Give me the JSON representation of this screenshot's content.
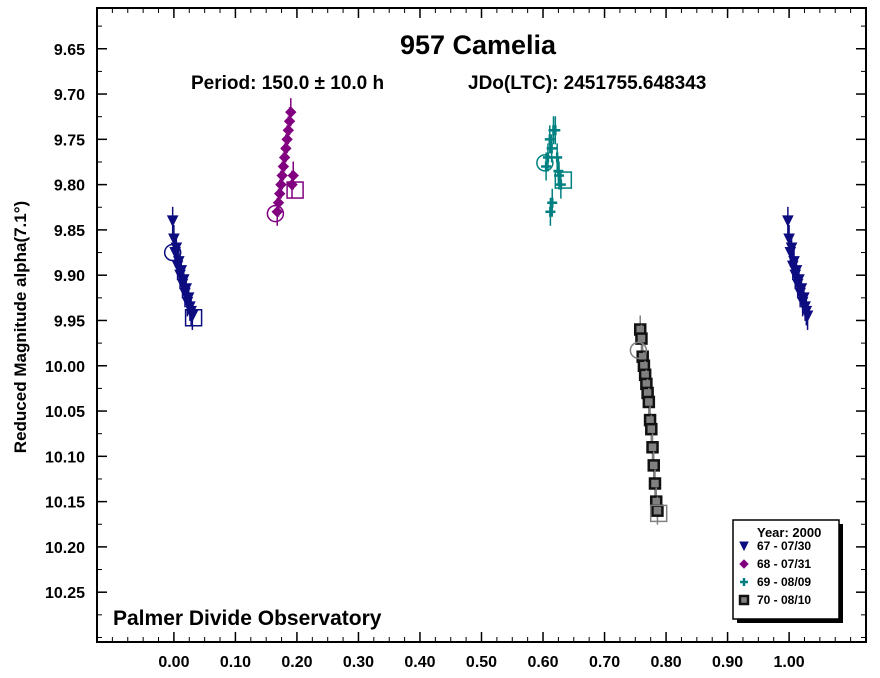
{
  "chart_data": {
    "type": "scatter",
    "title": "957 Camelia",
    "subtitle_left": "Period: 150.0 ± 10.0 h",
    "subtitle_right": "JDo(LTC): 2451755.648343",
    "ylabel": "Reduced Magnitude alpha(7.1°)",
    "xlabel": "",
    "credit": "Palmer Divide Observatory",
    "xlim": [
      -0.125,
      1.125
    ],
    "ylim": [
      9.605,
      10.305
    ],
    "y_inverted": true,
    "grid": false,
    "x_ticks": [
      "0.00",
      "0.10",
      "0.20",
      "0.30",
      "0.40",
      "0.50",
      "0.60",
      "0.70",
      "0.80",
      "0.90",
      "1.00"
    ],
    "y_ticks": [
      "9.65",
      "9.70",
      "9.75",
      "9.80",
      "9.85",
      "9.90",
      "9.95",
      "10.00",
      "10.05",
      "10.10",
      "10.15",
      "10.20",
      "10.25"
    ],
    "legend": {
      "title": "Year: 2000",
      "placement": "bottom-right",
      "entries": [
        "67 - 07/30",
        "68 - 07/31",
        "69 - 08/09",
        "70 - 08/10"
      ]
    },
    "series": [
      {
        "name": "67 - 07/30",
        "marker": "triangle-down",
        "color": "#0d0d80",
        "first_point": [
          -0.002,
          9.875
        ],
        "last_point": [
          0.032,
          9.947
        ],
        "x": [
          -0.002,
          0.0,
          0.002,
          0.004,
          0.006,
          0.008,
          0.01,
          0.012,
          0.014,
          0.016,
          0.018,
          0.02,
          0.022,
          0.024,
          0.026,
          0.028,
          0.03
        ],
        "y": [
          9.84,
          9.86,
          9.875,
          9.87,
          9.89,
          9.885,
          9.9,
          9.895,
          9.91,
          9.905,
          9.92,
          9.915,
          9.93,
          9.925,
          9.935,
          9.94,
          9.945
        ]
      },
      {
        "name": "68 - 07/31",
        "marker": "diamond",
        "color": "#800080",
        "first_point": [
          0.165,
          9.832
        ],
        "last_point": [
          0.197,
          9.806
        ],
        "x": [
          0.168,
          0.17,
          0.172,
          0.174,
          0.176,
          0.178,
          0.18,
          0.182,
          0.184,
          0.186,
          0.188,
          0.19,
          0.192,
          0.194
        ],
        "y": [
          9.83,
          9.82,
          9.81,
          9.8,
          9.79,
          9.78,
          9.77,
          9.76,
          9.75,
          9.74,
          9.73,
          9.72,
          9.8,
          9.79
        ]
      },
      {
        "name": "69 - 08/09",
        "marker": "cross",
        "color": "#008080",
        "first_point": [
          0.603,
          9.776
        ],
        "last_point": [
          0.633,
          9.795
        ],
        "x": [
          0.605,
          0.608,
          0.611,
          0.614,
          0.617,
          0.62,
          0.623,
          0.626,
          0.629,
          0.615,
          0.612,
          0.625
        ],
        "y": [
          9.78,
          9.77,
          9.75,
          9.76,
          9.74,
          9.74,
          9.77,
          9.79,
          9.8,
          9.82,
          9.83,
          9.785
        ]
      },
      {
        "name": "70 - 08/10",
        "marker": "square",
        "color": "#808080",
        "first_point": [
          0.755,
          9.983
        ],
        "last_point": [
          0.788,
          10.163
        ],
        "x": [
          0.758,
          0.76,
          0.762,
          0.764,
          0.766,
          0.768,
          0.77,
          0.772,
          0.774,
          0.776,
          0.778,
          0.78,
          0.782,
          0.784,
          0.786
        ],
        "y": [
          9.96,
          9.97,
          9.99,
          10.0,
          10.01,
          10.02,
          10.03,
          10.04,
          10.06,
          10.07,
          10.09,
          10.11,
          10.13,
          10.15,
          10.16
        ]
      },
      {
        "name": "67 - 07/30",
        "repeat_of": "67 - 07/30",
        "marker": "triangle-down",
        "color": "#0d0d80",
        "x": [
          0.998,
          1.0,
          1.002,
          1.004,
          1.006,
          1.008,
          1.01,
          1.012,
          1.014,
          1.016,
          1.018,
          1.02,
          1.022,
          1.024,
          1.026,
          1.028,
          1.03
        ],
        "y": [
          9.84,
          9.86,
          9.875,
          9.87,
          9.89,
          9.885,
          9.9,
          9.895,
          9.91,
          9.905,
          9.92,
          9.915,
          9.93,
          9.925,
          9.935,
          9.94,
          9.945
        ]
      }
    ]
  }
}
